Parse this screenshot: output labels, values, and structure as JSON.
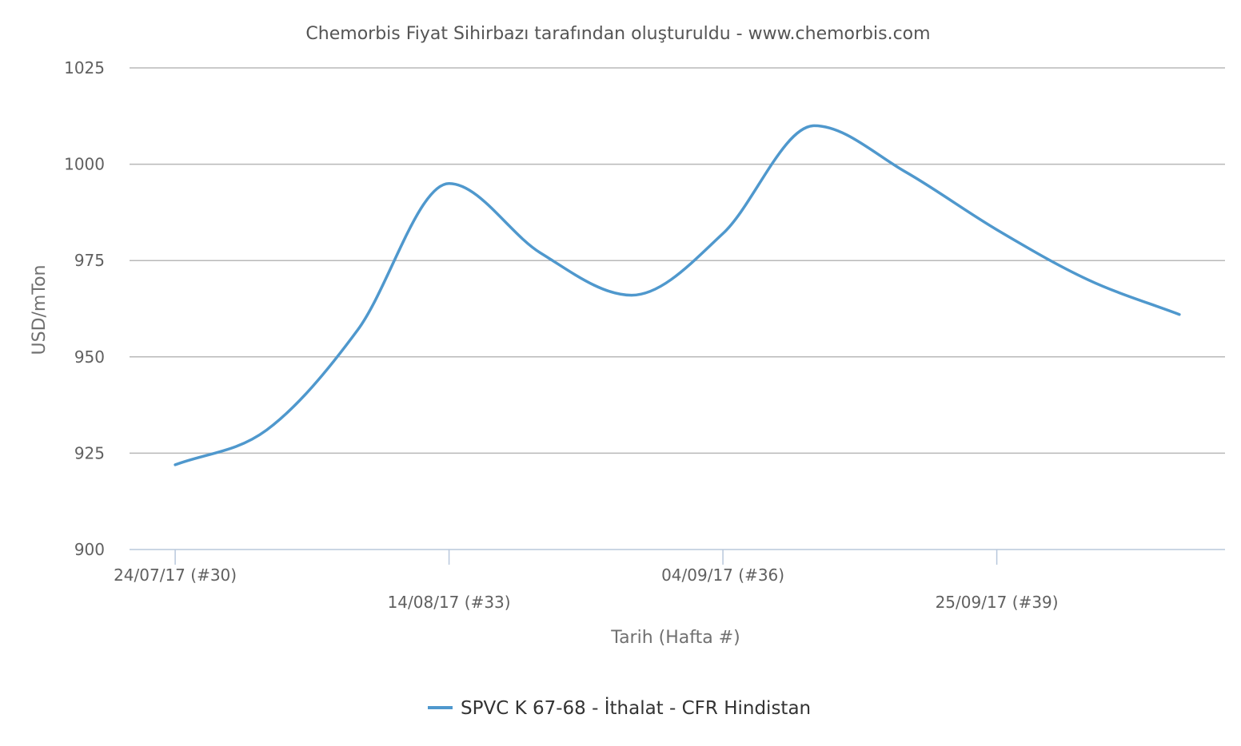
{
  "chart_data": {
    "type": "line",
    "title": "Chemorbis Fiyat Sihirbazı tarafından oluşturuldu - www.chemorbis.com",
    "xlabel": "Tarih (Hafta #)",
    "ylabel": "USD/mTon",
    "ylim": [
      900,
      1025
    ],
    "yticks": [
      900,
      925,
      950,
      975,
      1000,
      1025
    ],
    "grid": true,
    "legend_position": "bottom-center",
    "week_range": [
      29.5,
      41.5
    ],
    "tick_labels": [
      {
        "label": "24/07/17 (#30)",
        "week": 30,
        "row": 1
      },
      {
        "label": "14/08/17 (#33)",
        "week": 33,
        "row": 2
      },
      {
        "label": "04/09/17 (#36)",
        "week": 36,
        "row": 1
      },
      {
        "label": "25/09/17 (#39)",
        "week": 39,
        "row": 2
      }
    ],
    "series": [
      {
        "name": "SPVC K 67-68 - İthalat - CFR Hindistan",
        "color": "#4f98cd",
        "x": [
          30,
          31,
          32,
          33,
          34,
          35,
          36,
          37,
          38,
          39,
          40,
          41
        ],
        "values": [
          922,
          931,
          957,
          995,
          977,
          966,
          982,
          1010,
          998,
          983,
          970,
          961
        ]
      }
    ]
  }
}
